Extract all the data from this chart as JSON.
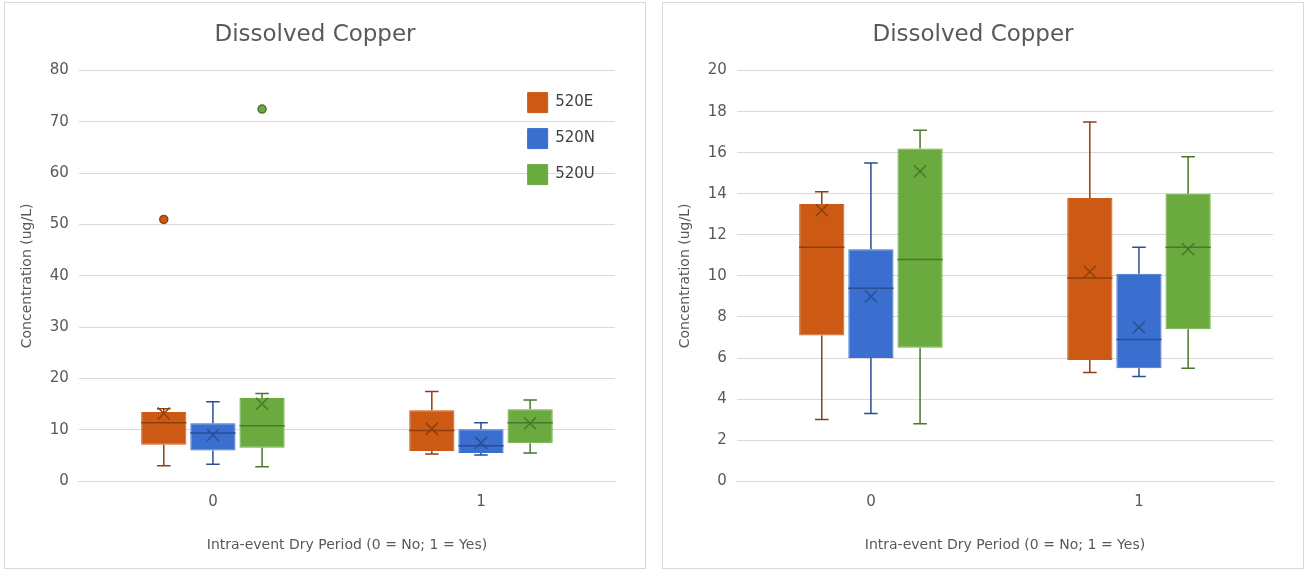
{
  "chart_data": [
    {
      "type": "box",
      "title": "Dissolved Copper",
      "xlabel": "Intra-event Dry Period (0 = No; 1 = Yes)",
      "ylabel": "Concentration (ug/L)",
      "categories": [
        "0",
        "1"
      ],
      "ylim": [
        0,
        80
      ],
      "yticks": [
        0,
        10,
        20,
        30,
        40,
        50,
        60,
        70,
        80
      ],
      "grid": "y",
      "legend": "top right",
      "series": [
        {
          "name": "520E",
          "color": "#cc5a14",
          "boxes": [
            {
              "low": 3.0,
              "q1": 7.1,
              "median": 11.4,
              "q3": 13.5,
              "high": 14.1,
              "mean": 13.2,
              "outliers": [
                51
              ]
            },
            {
              "low": 5.3,
              "q1": 5.9,
              "median": 9.9,
              "q3": 13.8,
              "high": 17.5,
              "mean": 10.2
            }
          ]
        },
        {
          "name": "520N",
          "color": "#3a6fd0",
          "boxes": [
            {
              "low": 3.3,
              "q1": 6.0,
              "median": 9.4,
              "q3": 11.3,
              "high": 15.5,
              "mean": 9.0
            },
            {
              "low": 5.1,
              "q1": 5.5,
              "median": 6.9,
              "q3": 10.1,
              "high": 11.4,
              "mean": 7.5
            }
          ]
        },
        {
          "name": "520U",
          "color": "#6aaa3e",
          "boxes": [
            {
              "low": 2.8,
              "q1": 6.5,
              "median": 10.8,
              "q3": 16.2,
              "high": 17.1,
              "mean": 15.1,
              "outliers": [
                72.5
              ]
            },
            {
              "low": 5.5,
              "q1": 7.4,
              "median": 11.4,
              "q3": 14.0,
              "high": 15.8,
              "mean": 11.3
            }
          ]
        }
      ]
    },
    {
      "type": "box",
      "title": "Dissolved Copper",
      "xlabel": "Intra-event Dry Period (0 = No; 1 = Yes)",
      "ylabel": "Concentration (ug/L)",
      "categories": [
        "0",
        "1"
      ],
      "ylim": [
        0,
        20
      ],
      "yticks": [
        0,
        2,
        4,
        6,
        8,
        10,
        12,
        14,
        16,
        18,
        20
      ],
      "grid": "y",
      "series": [
        {
          "color": "#cc5a14",
          "boxes": [
            {
              "low": 3.0,
              "q1": 7.1,
              "median": 11.4,
              "q3": 13.5,
              "high": 14.1,
              "mean": 13.2
            },
            {
              "low": 5.3,
              "q1": 5.9,
              "median": 9.9,
              "q3": 13.8,
              "high": 17.5,
              "mean": 10.2
            }
          ]
        },
        {
          "color": "#3a6fd0",
          "boxes": [
            {
              "low": 3.3,
              "q1": 6.0,
              "median": 9.4,
              "q3": 11.3,
              "high": 15.5,
              "mean": 9.0
            },
            {
              "low": 5.1,
              "q1": 5.5,
              "median": 6.9,
              "q3": 10.1,
              "high": 11.4,
              "mean": 7.5
            }
          ]
        },
        {
          "color": "#6aaa3e",
          "boxes": [
            {
              "low": 2.8,
              "q1": 6.5,
              "median": 10.8,
              "q3": 16.2,
              "high": 17.1,
              "mean": 15.1
            },
            {
              "low": 5.5,
              "q1": 7.4,
              "median": 11.4,
              "q3": 14.0,
              "high": 15.8,
              "mean": 11.3
            }
          ]
        }
      ]
    }
  ]
}
